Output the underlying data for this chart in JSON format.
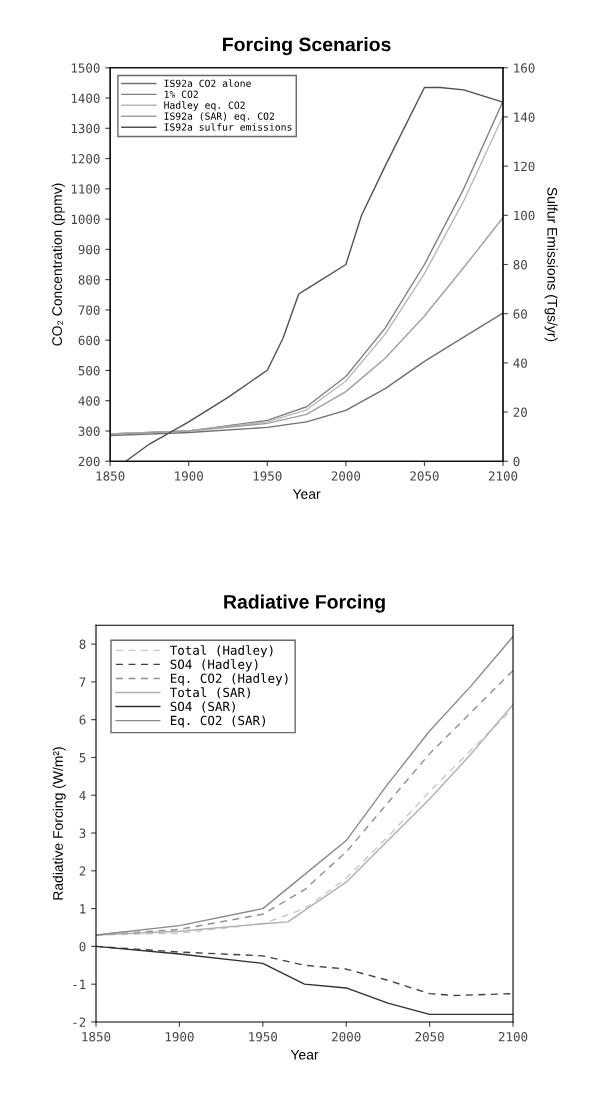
{
  "chart_data": [
    {
      "type": "line",
      "title": "Forcing Scenarios",
      "xlabel": "Year",
      "ylabel": "CO₂ Concentration (ppmv)",
      "y2label": "Sulfur Emissions (Tgs/yr)",
      "xlim": [
        1850,
        2100
      ],
      "xticks": [
        1850,
        1900,
        1950,
        2000,
        2050,
        2100
      ],
      "ylim": [
        200,
        1500
      ],
      "yticks": [
        200,
        300,
        400,
        500,
        600,
        700,
        800,
        900,
        1000,
        1100,
        1200,
        1300,
        1400,
        1500
      ],
      "y2lim": [
        0,
        160
      ],
      "y2ticks": [
        0,
        20,
        40,
        60,
        80,
        100,
        120,
        140,
        160
      ],
      "grid": false,
      "legend": "top left",
      "series": [
        {
          "name": "IS92a CO2 alone",
          "color": "#707070",
          "x": [
            1850,
            1900,
            1950,
            1975,
            2000,
            2025,
            2050,
            2075,
            2100
          ],
          "values": [
            285,
            295,
            312,
            330,
            368,
            440,
            530,
            610,
            690
          ]
        },
        {
          "name": "1% CO2",
          "color": "#808080",
          "x": [
            1850,
            1900,
            1950,
            1975,
            2000,
            2025,
            2050,
            2075,
            2100
          ],
          "values": [
            290,
            300,
            335,
            380,
            480,
            640,
            850,
            1100,
            1390
          ]
        },
        {
          "name": "Hadley eq. CO2",
          "color": "#b8b8b8",
          "x": [
            1850,
            1900,
            1950,
            1975,
            2000,
            2025,
            2050,
            2075,
            2100
          ],
          "values": [
            290,
            300,
            330,
            370,
            465,
            620,
            820,
            1060,
            1340
          ]
        },
        {
          "name": "IS92a (SAR) eq. CO2",
          "color": "#a0a0a0",
          "x": [
            1850,
            1900,
            1950,
            1975,
            2000,
            2025,
            2050,
            2075,
            2100
          ],
          "values": [
            290,
            300,
            325,
            355,
            430,
            540,
            680,
            840,
            1005
          ]
        },
        {
          "name": "IS92a sulfur emissions",
          "color": "#505050",
          "axis": "y2",
          "x": [
            1860,
            1875,
            1900,
            1925,
            1950,
            1960,
            1970,
            1975,
            2000,
            2010,
            2025,
            2050,
            2060,
            2075,
            2100
          ],
          "values": [
            0,
            7,
            16,
            26,
            37,
            50,
            68,
            70,
            80,
            100,
            120,
            152,
            152,
            151,
            146
          ]
        }
      ]
    },
    {
      "type": "line",
      "title": "Radiative Forcing",
      "xlabel": "Year",
      "ylabel": "Radiative Forcing (W/m²)",
      "xlim": [
        1850,
        2100
      ],
      "xticks": [
        1850,
        1900,
        1950,
        2000,
        2050,
        2100
      ],
      "ylim": [
        -2,
        8.5
      ],
      "yticks": [
        -2,
        -1,
        0,
        1,
        2,
        3,
        4,
        5,
        6,
        7,
        8
      ],
      "grid": false,
      "legend": "top left",
      "series": [
        {
          "name": "Total (Hadley)",
          "color": "#c8c8c8",
          "line_style": "dashed",
          "x": [
            1850,
            1900,
            1950,
            1975,
            2000,
            2025,
            2050,
            2075,
            2100
          ],
          "values": [
            0.3,
            0.35,
            0.6,
            1.0,
            1.8,
            2.9,
            4.1,
            5.2,
            6.3
          ]
        },
        {
          "name": "SO4 (Hadley)",
          "color": "#404040",
          "line_style": "dashed",
          "x": [
            1850,
            1900,
            1950,
            1975,
            2000,
            2025,
            2050,
            2065,
            2100
          ],
          "values": [
            0,
            -0.15,
            -0.25,
            -0.5,
            -0.6,
            -0.9,
            -1.25,
            -1.3,
            -1.25
          ]
        },
        {
          "name": "Eq. CO2 (Hadley)",
          "color": "#909090",
          "line_style": "dashed",
          "x": [
            1850,
            1900,
            1950,
            1975,
            2000,
            2025,
            2050,
            2075,
            2100
          ],
          "values": [
            0.3,
            0.45,
            0.85,
            1.5,
            2.5,
            3.8,
            5.1,
            6.2,
            7.3
          ]
        },
        {
          "name": "Total (SAR)",
          "color": "#b0b0b0",
          "line_style": "solid",
          "x": [
            1850,
            1900,
            1950,
            1965,
            2000,
            2025,
            2050,
            2075,
            2100
          ],
          "values": [
            0.3,
            0.4,
            0.6,
            0.65,
            1.7,
            2.8,
            3.9,
            5.1,
            6.4
          ]
        },
        {
          "name": "SO4 (SAR)",
          "color": "#303030",
          "line_style": "solid",
          "x": [
            1850,
            1900,
            1950,
            1975,
            2000,
            2025,
            2050,
            2075,
            2100
          ],
          "values": [
            0,
            -0.2,
            -0.45,
            -1.0,
            -1.1,
            -1.5,
            -1.8,
            -1.8,
            -1.8
          ]
        },
        {
          "name": "Eq. CO2 (SAR)",
          "color": "#8a8a8a",
          "line_style": "solid",
          "x": [
            1850,
            1900,
            1950,
            1975,
            2000,
            2025,
            2050,
            2075,
            2100
          ],
          "values": [
            0.3,
            0.55,
            1.0,
            1.9,
            2.8,
            4.3,
            5.7,
            6.9,
            8.2
          ]
        }
      ]
    }
  ]
}
